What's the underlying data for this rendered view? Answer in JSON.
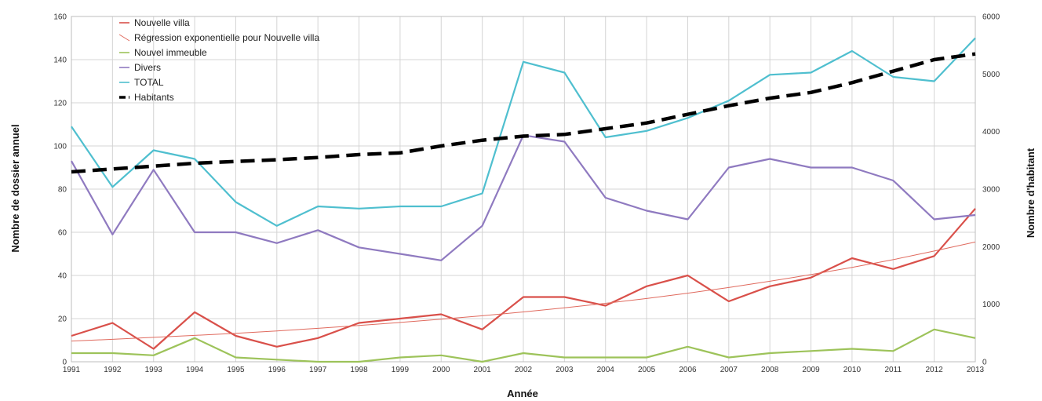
{
  "chart_data": {
    "type": "line",
    "x": [
      "1991",
      "1992",
      "1993",
      "1994",
      "1995",
      "1996",
      "1997",
      "1998",
      "1999",
      "2000",
      "2001",
      "2002",
      "2003",
      "2004",
      "2005",
      "2006",
      "2007",
      "2008",
      "2009",
      "2010",
      "2011",
      "2012",
      "2013"
    ],
    "xlabel": "Année",
    "ylabel_left": "Nombre de dossier annuel",
    "ylabel_right": "Nombre d'habitant",
    "ylim_left": [
      0,
      160
    ],
    "yticks_left": [
      "0",
      "20",
      "40",
      "60",
      "80",
      "100",
      "120",
      "140",
      "160"
    ],
    "ylim_right": [
      0,
      6000
    ],
    "yticks_right": [
      "0",
      "1000",
      "2000",
      "3000",
      "4000",
      "5000",
      "6000"
    ],
    "grid": true,
    "legend_position": "top-left",
    "series": [
      {
        "name": "Nouvelle villa",
        "axis": "left",
        "color": "#d9504a",
        "style": "solid",
        "values": [
          12,
          18,
          6,
          23,
          12,
          7,
          11,
          18,
          20,
          22,
          15,
          30,
          30,
          26,
          35,
          40,
          28,
          35,
          39,
          48,
          43,
          49,
          71
        ]
      },
      {
        "name": "Régression exponentielle pour Nouvelle villa",
        "axis": "left",
        "color": "#e06a5e",
        "style": "thin",
        "values": [
          9.6,
          10.4,
          11.3,
          12.2,
          13.2,
          14.3,
          15.5,
          16.8,
          18.2,
          19.7,
          21.3,
          23.1,
          25.0,
          27.1,
          29.3,
          31.8,
          34.4,
          37.3,
          40.4,
          43.7,
          47.3,
          51.3,
          55.5
        ]
      },
      {
        "name": "Nouvel immeuble",
        "axis": "left",
        "color": "#9dc35a",
        "style": "solid",
        "values": [
          4,
          4,
          3,
          11,
          2,
          1,
          0,
          0,
          2,
          3,
          0,
          4,
          2,
          2,
          2,
          7,
          2,
          4,
          5,
          6,
          5,
          15,
          11
        ]
      },
      {
        "name": "Divers",
        "axis": "left",
        "color": "#8f7ac0",
        "style": "solid",
        "values": [
          93,
          59,
          89,
          60,
          60,
          55,
          61,
          53,
          50,
          47,
          63,
          105,
          102,
          76,
          70,
          66,
          90,
          94,
          90,
          90,
          84,
          66,
          68
        ]
      },
      {
        "name": "TOTAL",
        "axis": "left",
        "color": "#4fbfcf",
        "style": "solid",
        "values": [
          109,
          81,
          98,
          94,
          74,
          63,
          72,
          71,
          72,
          72,
          78,
          139,
          134,
          104,
          107,
          113,
          121,
          133,
          134,
          144,
          132,
          130,
          150
        ]
      },
      {
        "name": "Habitants",
        "axis": "right",
        "color": "#000000",
        "style": "dashed",
        "values": [
          3300,
          3350,
          3400,
          3450,
          3480,
          3510,
          3550,
          3600,
          3630,
          3750,
          3850,
          3920,
          3950,
          4050,
          4150,
          4300,
          4450,
          4580,
          4680,
          4850,
          5050,
          5250,
          5350
        ]
      }
    ]
  }
}
